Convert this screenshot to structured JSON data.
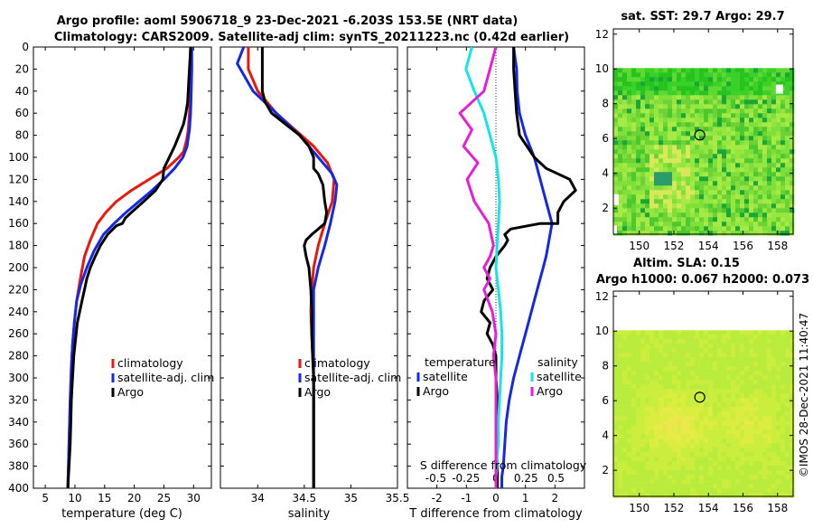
{
  "title": {
    "line1": "Argo profile: aoml 5906718_9 23-Dec-2021 -6.203S 153.5E (NRT data)",
    "line2": "Climatology: CARS2009. Satellite-adj clim: synTS_20211223.nc (0.42d earlier)"
  },
  "copyright": "©IMOS 28-Dec-2021 11:40:47",
  "chart_data": [
    {
      "type": "line",
      "name": "temperature-profile",
      "xlabel": "temperature (deg C)",
      "xlim": [
        3,
        33
      ],
      "xticks": [
        5,
        10,
        15,
        20,
        25,
        30
      ],
      "ylim": [
        0,
        400
      ],
      "yticks": [
        0,
        20,
        40,
        60,
        80,
        100,
        120,
        140,
        160,
        180,
        200,
        220,
        240,
        260,
        280,
        300,
        320,
        340,
        360,
        380,
        400
      ],
      "y_reversed": true,
      "legend": [
        "climatology",
        "satellite-adj. clim",
        "Argo"
      ],
      "legend_position": "lower-right",
      "series": [
        {
          "name": "climatology",
          "color": "#e8180c",
          "x": [
            29.5,
            29.5,
            29.4,
            29.3,
            29.1,
            28.8,
            28.3,
            27.5,
            25.5,
            22.5,
            19.5,
            17.0,
            15.2,
            13.8,
            12.6,
            11.6,
            10.9,
            10.3,
            9.9,
            9.6,
            9.4,
            9.2,
            9.0,
            8.8
          ],
          "y": [
            0,
            20,
            40,
            60,
            75,
            85,
            95,
            100,
            110,
            120,
            130,
            140,
            150,
            160,
            175,
            190,
            210,
            230,
            250,
            270,
            290,
            320,
            360,
            400
          ]
        },
        {
          "name": "satellite-adj. clim",
          "color": "#1428e6",
          "x": [
            29.7,
            29.7,
            29.6,
            29.5,
            29.3,
            28.9,
            28.2,
            26.8,
            25.0,
            23.0,
            20.8,
            18.6,
            16.6,
            14.8,
            13.2,
            12.0,
            11.0,
            10.3,
            9.9,
            9.6,
            9.4,
            9.2,
            9.0,
            8.8
          ],
          "y": [
            0,
            20,
            40,
            60,
            75,
            90,
            100,
            110,
            120,
            130,
            140,
            150,
            160,
            170,
            185,
            200,
            215,
            230,
            250,
            270,
            290,
            320,
            360,
            400
          ]
        },
        {
          "name": "Argo",
          "color": "#000000",
          "x": [
            29.5,
            29.4,
            29.3,
            29.2,
            29.1,
            29.0,
            28.7,
            28.3,
            26.8,
            25.0,
            24.8,
            23.6,
            21.6,
            19.5,
            18.5,
            18.0,
            17.0,
            15.5,
            14.3,
            13.4,
            12.6,
            12.0,
            11.6,
            11.2,
            10.8,
            10.4,
            10.2,
            10.0,
            9.8,
            9.7,
            9.6,
            9.4,
            9.3,
            9.2,
            9.0,
            8.8
          ],
          "y": [
            0,
            10,
            20,
            30,
            40,
            50,
            60,
            70,
            90,
            110,
            120,
            130,
            140,
            150,
            155,
            160,
            162,
            170,
            180,
            190,
            200,
            210,
            220,
            230,
            240,
            250,
            260,
            270,
            280,
            290,
            300,
            320,
            340,
            360,
            380,
            400
          ]
        }
      ]
    },
    {
      "type": "line",
      "name": "salinity-profile",
      "xlabel": "salinity",
      "xlim": [
        33.6,
        35.5
      ],
      "xticks": [
        34,
        34.5,
        35,
        35.5
      ],
      "xticklabels": [
        "34",
        "34.5",
        "35",
        "35.5"
      ],
      "ylim": [
        0,
        400
      ],
      "legend": [
        "climatology",
        "satellite-adj. clim",
        "Argo"
      ],
      "legend_position": "lower-right",
      "series": [
        {
          "name": "climatology",
          "color": "#e8180c",
          "x": [
            33.9,
            33.9,
            34.0,
            34.2,
            34.4,
            34.6,
            34.75,
            34.82,
            34.8,
            34.72,
            34.65,
            34.6,
            34.58,
            34.57,
            34.58,
            34.59,
            34.6,
            34.6,
            34.6,
            34.6
          ],
          "y": [
            0,
            20,
            40,
            60,
            75,
            90,
            105,
            120,
            140,
            160,
            180,
            200,
            220,
            240,
            260,
            280,
            300,
            340,
            370,
            400
          ]
        },
        {
          "name": "satellite-adj. clim",
          "color": "#1428e6",
          "x": [
            33.85,
            33.78,
            33.95,
            34.2,
            34.45,
            34.65,
            34.8,
            34.85,
            34.83,
            34.78,
            34.72,
            34.65,
            34.6,
            34.6,
            34.6,
            34.6,
            34.6,
            34.6
          ],
          "y": [
            0,
            15,
            40,
            60,
            80,
            100,
            115,
            125,
            140,
            160,
            180,
            200,
            220,
            240,
            260,
            300,
            350,
            400
          ]
        },
        {
          "name": "Argo",
          "color": "#000000",
          "x": [
            34.05,
            34.05,
            34.05,
            34.08,
            34.15,
            34.3,
            34.45,
            34.55,
            34.6,
            34.6,
            34.65,
            34.7,
            34.72,
            34.74,
            34.72,
            34.65,
            34.58,
            34.52,
            34.5,
            34.52,
            34.55,
            34.57,
            34.58,
            34.58,
            34.59,
            34.6,
            34.6,
            34.6
          ],
          "y": [
            0,
            20,
            40,
            50,
            60,
            70,
            80,
            90,
            100,
            110,
            115,
            125,
            140,
            150,
            160,
            165,
            170,
            175,
            180,
            190,
            200,
            220,
            240,
            260,
            280,
            300,
            350,
            400
          ]
        }
      ]
    },
    {
      "type": "line",
      "name": "difference-profile",
      "xlabel": "T difference from climatology",
      "xlabel_top": "S difference from climatology",
      "xlim": [
        -3,
        3
      ],
      "xticks": [
        -2,
        -1,
        0,
        1,
        2
      ],
      "xticklabels": [
        "-2",
        "-1",
        "0",
        "1",
        "2"
      ],
      "s_ticks": [
        -0.5,
        -0.25,
        0,
        0.25,
        0.5
      ],
      "s_ticklabels": [
        "-0.5",
        "-0.25",
        "0",
        "0.25",
        "0.5"
      ],
      "ylim": [
        0,
        400
      ],
      "legend_temperature": {
        "heading": "temperature",
        "items": [
          "satellite",
          "Argo"
        ]
      },
      "legend_salinity": {
        "heading": "salinity",
        "items": [
          "satellite",
          "Argo"
        ]
      },
      "series": [
        {
          "name": "T satellite",
          "color": "#1428e6",
          "x": [
            0.6,
            0.7,
            0.72,
            0.8,
            1.0,
            1.3,
            1.5,
            1.7,
            1.9,
            1.8,
            1.7,
            1.6,
            1.4,
            1.2,
            1.0,
            0.8,
            0.6,
            0.45,
            0.35,
            0.3,
            0.25,
            0.2,
            0.2
          ],
          "y": [
            0,
            20,
            40,
            60,
            80,
            100,
            120,
            140,
            160,
            175,
            190,
            200,
            220,
            240,
            260,
            280,
            300,
            320,
            340,
            360,
            380,
            390,
            400
          ]
        },
        {
          "name": "T Argo",
          "color": "#000000",
          "x": [
            0.6,
            0.6,
            0.65,
            0.7,
            0.8,
            1.3,
            1.7,
            2.5,
            2.7,
            2.3,
            2.1,
            2.1,
            1.5,
            0.5,
            0.3,
            0.4,
            0.3,
            0.0,
            -0.2,
            -0.3,
            -0.1,
            -0.4,
            -0.5,
            -0.2,
            -0.3,
            -0.1,
            0.0,
            0.0,
            0.05,
            0.0,
            0.0,
            0.05,
            0.05
          ],
          "y": [
            0,
            20,
            40,
            60,
            80,
            100,
            110,
            120,
            130,
            140,
            150,
            160,
            160,
            165,
            170,
            175,
            180,
            190,
            200,
            210,
            220,
            230,
            240,
            250,
            260,
            270,
            280,
            300,
            320,
            340,
            360,
            380,
            400
          ]
        },
        {
          "name": "S satellite",
          "color": "#14e6e6",
          "x": [
            -0.2,
            -0.25,
            -0.18,
            -0.1,
            -0.05,
            0.0,
            0.02,
            0.03,
            0.02,
            0.01,
            0.0,
            0.02,
            0.04,
            0.05,
            0.05,
            0.04,
            0.03,
            0.02,
            0.02,
            0.01,
            0.01,
            0.0,
            0.0
          ],
          "y": [
            0,
            20,
            40,
            60,
            80,
            100,
            120,
            140,
            160,
            180,
            200,
            220,
            240,
            260,
            280,
            300,
            320,
            340,
            360,
            370,
            380,
            390,
            400
          ]
        },
        {
          "name": "S Argo",
          "color": "#e61ed8",
          "x": [
            0.0,
            -0.05,
            -0.1,
            -0.3,
            -0.2,
            -0.27,
            -0.15,
            -0.24,
            -0.18,
            -0.06,
            -0.02,
            -0.05,
            -0.1,
            -0.05,
            -0.1,
            -0.03,
            0.0,
            -0.02,
            0.0,
            0.0,
            0.0,
            0.0,
            0.0
          ],
          "y": [
            0,
            20,
            40,
            60,
            75,
            90,
            105,
            120,
            140,
            160,
            180,
            190,
            200,
            210,
            220,
            240,
            260,
            280,
            300,
            330,
            360,
            390,
            400
          ]
        }
      ]
    },
    {
      "type": "heatmap",
      "name": "sst-map",
      "title": "sat. SST: 29.7 Argo: 29.7",
      "xlim": [
        148.5,
        158.9
      ],
      "ylim": [
        0.5,
        12.3
      ],
      "xticks": [
        150,
        152,
        154,
        156,
        158
      ],
      "yticks": [
        2,
        4,
        6,
        8,
        10,
        12
      ],
      "float_position": [
        153.5,
        6.2
      ]
    },
    {
      "type": "heatmap",
      "name": "sla-map",
      "title_line1": "Altim. SLA: 0.15",
      "title_line2": "Argo h1000: 0.067 h2000: 0.073",
      "xlim": [
        148.5,
        158.9
      ],
      "ylim": [
        0.5,
        12.3
      ],
      "xticks": [
        150,
        152,
        154,
        156,
        158
      ],
      "yticks": [
        2,
        4,
        6,
        8,
        10,
        12
      ],
      "float_position": [
        153.5,
        6.2
      ]
    }
  ]
}
